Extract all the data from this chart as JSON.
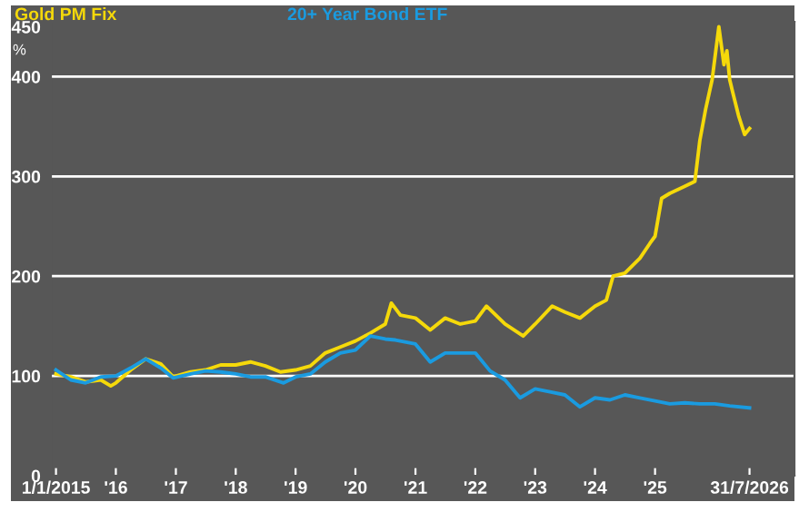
{
  "chart_data": {
    "type": "line",
    "ylabel": "%",
    "xlim": [
      "2014-12-01",
      "2027-05-01"
    ],
    "ylim": [
      0,
      455
    ],
    "xticks": [
      {
        "value": "2015-01-01",
        "label": "1/1/2015"
      },
      {
        "value": "2016-01-01",
        "label": "'16"
      },
      {
        "value": "2017-01-01",
        "label": "'17"
      },
      {
        "value": "2018-01-01",
        "label": "'18"
      },
      {
        "value": "2019-01-01",
        "label": "'19"
      },
      {
        "value": "2020-01-01",
        "label": "'20"
      },
      {
        "value": "2021-01-01",
        "label": "'21"
      },
      {
        "value": "2022-01-01",
        "label": "'22"
      },
      {
        "value": "2023-01-01",
        "label": "'23"
      },
      {
        "value": "2024-01-01",
        "label": "'24"
      },
      {
        "value": "2025-01-01",
        "label": "'25"
      },
      {
        "value": "2026-07-31",
        "label": "31/7/2026"
      }
    ],
    "yticks": [
      0,
      100,
      200,
      300,
      400,
      450
    ],
    "grid": "y",
    "series": [
      {
        "name": "Gold PM Fix",
        "color": "#f5d90a",
        "x": [
          "2015-01-01",
          "2015-04-01",
          "2015-07-01",
          "2015-10-01",
          "2015-12-01",
          "2016-01-01",
          "2016-04-01",
          "2016-07-01",
          "2016-10-01",
          "2016-12-15",
          "2017-04-01",
          "2017-07-01",
          "2017-10-01",
          "2018-01-01",
          "2018-04-01",
          "2018-07-01",
          "2018-10-01",
          "2019-01-01",
          "2019-04-01",
          "2019-07-01",
          "2019-10-01",
          "2020-01-01",
          "2020-04-01",
          "2020-07-01",
          "2020-08-07",
          "2020-10-01",
          "2021-01-01",
          "2021-04-01",
          "2021-07-01",
          "2021-10-01",
          "2022-01-01",
          "2022-03-10",
          "2022-07-01",
          "2022-10-20",
          "2023-01-01",
          "2023-04-15",
          "2023-07-01",
          "2023-10-01",
          "2024-01-01",
          "2024-03-10",
          "2024-04-20",
          "2024-07-01",
          "2024-10-01",
          "2024-12-01",
          "2025-01-01",
          "2025-02-10",
          "2025-04-01",
          "2025-07-01",
          "2025-09-01",
          "2025-10-01",
          "2025-11-05",
          "2025-12-15",
          "2026-01-25",
          "2026-02-25",
          "2026-03-15",
          "2026-04-01",
          "2026-04-20",
          "2026-05-25",
          "2026-07-01",
          "2026-07-31"
        ],
        "values": [
          102,
          99,
          94,
          96,
          90,
          93,
          106,
          117,
          112,
          99,
          104,
          106,
          111,
          111,
          114,
          110,
          104,
          106,
          110,
          123,
          129,
          135,
          143,
          152,
          173,
          161,
          158,
          146,
          158,
          152,
          155,
          170,
          152,
          140,
          152,
          170,
          164,
          158,
          170,
          176,
          200,
          203,
          218,
          233,
          240,
          278,
          283,
          290,
          295,
          336,
          367,
          397,
          450,
          412,
          426,
          397,
          384,
          361,
          342,
          348
        ]
      },
      {
        "name": "20+ Year Bond ETF",
        "color": "#1a9be0",
        "x": [
          "2015-01-01",
          "2015-04-01",
          "2015-07-01",
          "2015-10-01",
          "2016-01-01",
          "2016-04-01",
          "2016-07-01",
          "2016-10-01",
          "2016-12-15",
          "2017-04-01",
          "2017-07-01",
          "2017-10-01",
          "2018-01-01",
          "2018-04-01",
          "2018-07-01",
          "2018-10-20",
          "2019-01-01",
          "2019-04-01",
          "2019-07-01",
          "2019-10-01",
          "2020-01-01",
          "2020-04-01",
          "2020-07-01",
          "2020-09-01",
          "2021-01-01",
          "2021-04-01",
          "2021-07-01",
          "2021-10-01",
          "2022-01-01",
          "2022-04-01",
          "2022-07-01",
          "2022-10-01",
          "2023-01-01",
          "2023-04-01",
          "2023-07-01",
          "2023-10-01",
          "2024-01-01",
          "2024-04-01",
          "2024-07-01",
          "2024-10-01",
          "2025-01-01",
          "2025-04-01",
          "2025-07-01",
          "2025-10-01",
          "2026-01-01",
          "2026-04-01",
          "2026-07-31"
        ],
        "values": [
          106,
          96,
          93,
          99,
          100,
          108,
          117,
          108,
          98,
          102,
          105,
          104,
          102,
          99,
          99,
          93,
          99,
          102,
          114,
          123,
          126,
          140,
          137,
          136,
          132,
          114,
          123,
          123,
          123,
          105,
          96,
          78,
          87,
          84,
          81,
          69,
          78,
          76,
          81,
          78,
          75,
          72,
          73,
          72,
          72,
          70,
          68
        ]
      }
    ]
  }
}
